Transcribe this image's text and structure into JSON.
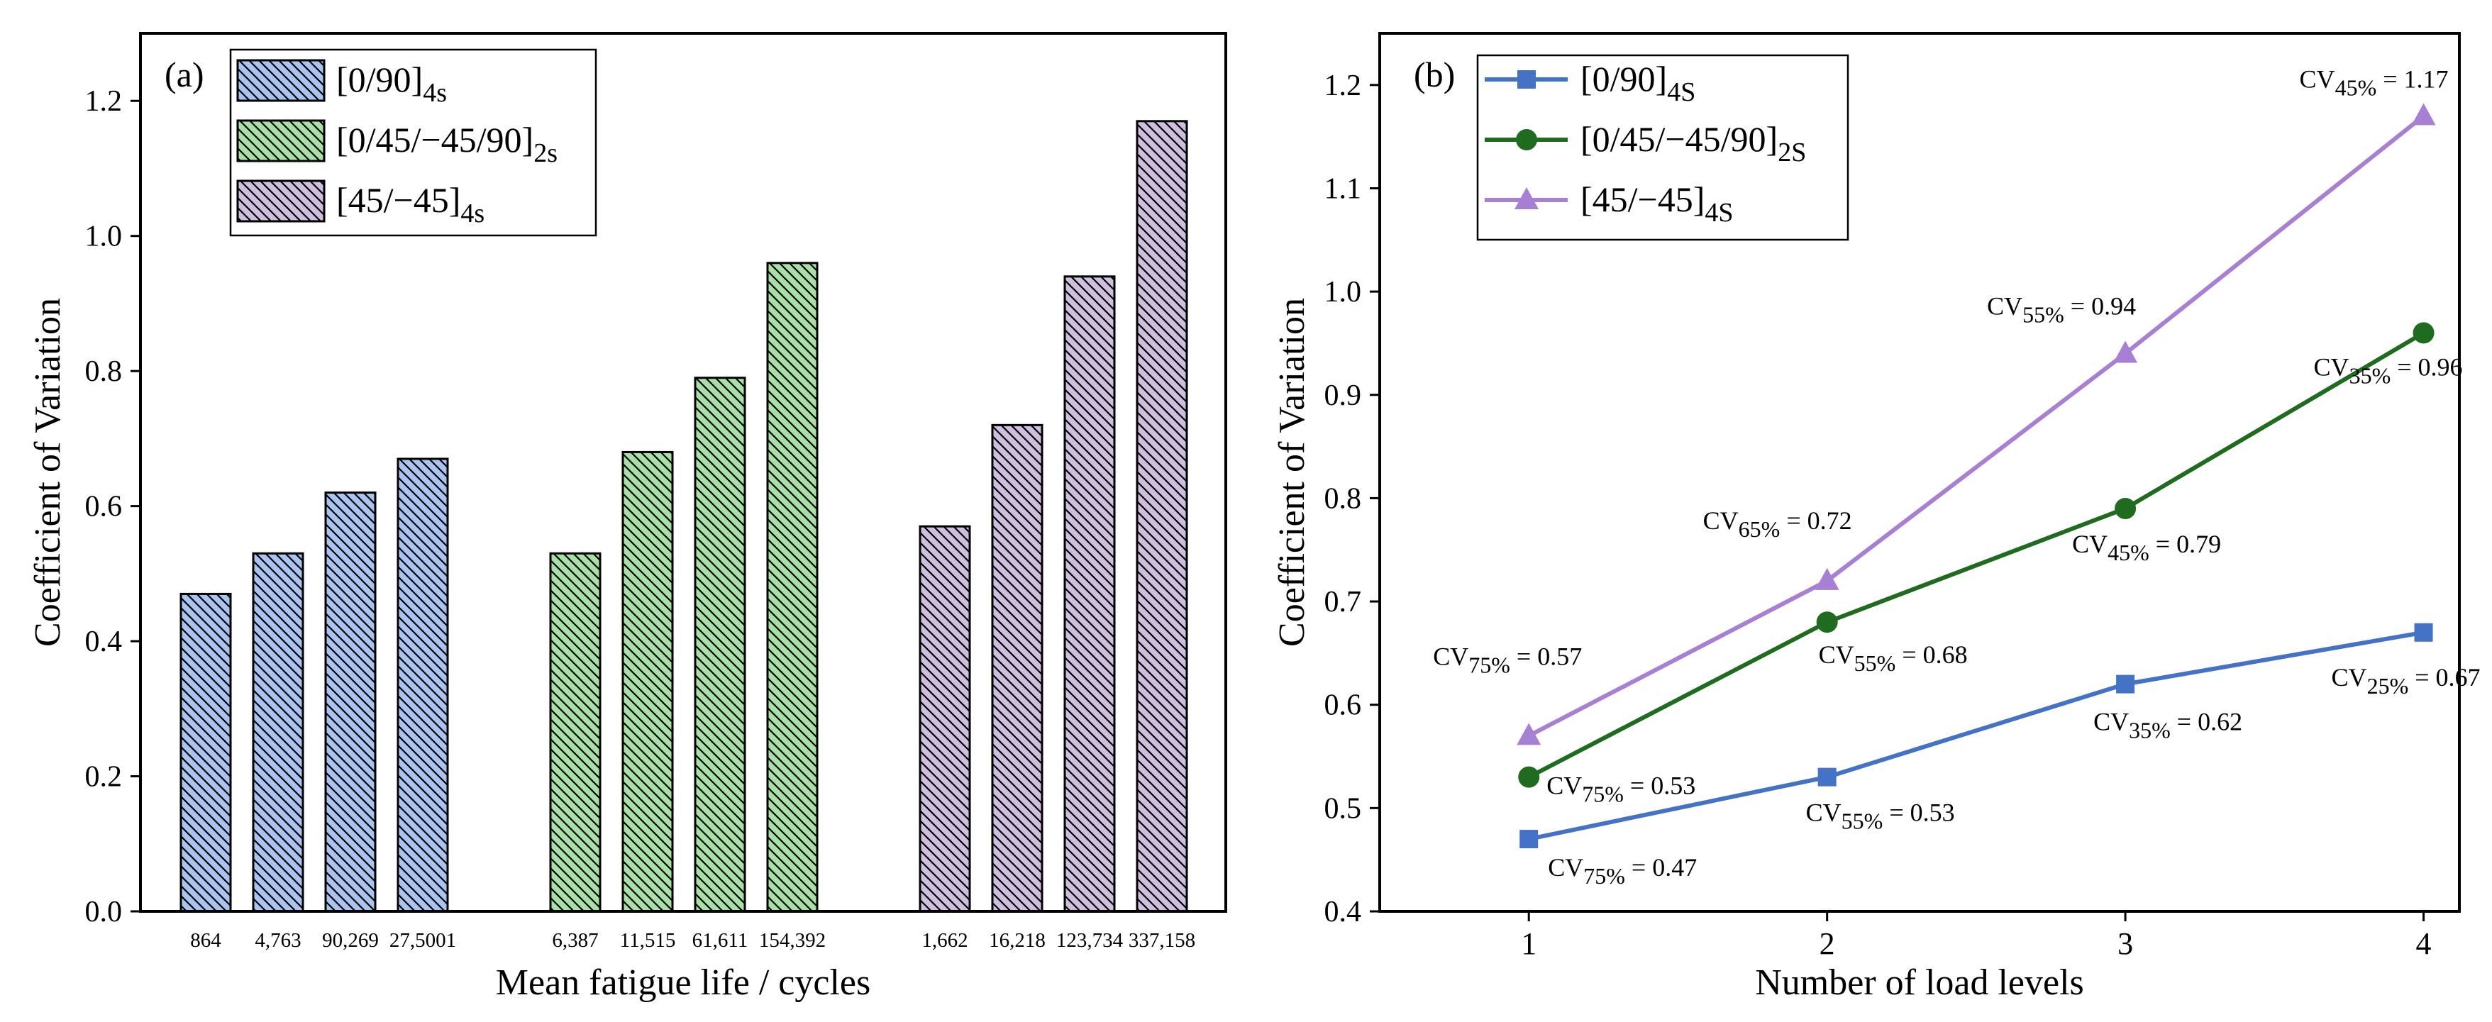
{
  "chart_data": [
    {
      "panel_label": "(a)",
      "type": "bar",
      "xlabel": "Mean fatigue life / cycles",
      "ylabel": "Coefficient of Variation",
      "ylim": [
        0,
        1.3
      ],
      "yticks": [
        "0.0",
        "0.2",
        "0.4",
        "0.6",
        "0.8",
        "1.0",
        "1.2"
      ],
      "legend_position": "top-left",
      "grid": false,
      "groups": [
        {
          "legend_base": "[0/90]",
          "legend_sub": "4s",
          "color": "#a9c4f0",
          "categories": [
            "864",
            "4,763",
            "90,269",
            "27,5001"
          ],
          "values": [
            0.47,
            0.53,
            0.62,
            0.67
          ]
        },
        {
          "legend_base": "[0/45/−45/90]",
          "legend_sub": "2s",
          "color": "#a8e0a6",
          "categories": [
            "6,387",
            "11,515",
            "61,611",
            "154,392"
          ],
          "values": [
            0.53,
            0.68,
            0.79,
            0.96
          ]
        },
        {
          "legend_base": "[45/−45]",
          "legend_sub": "4s",
          "color": "#cfbfdf",
          "categories": [
            "1,662",
            "16,218",
            "123,734",
            "337,158"
          ],
          "values": [
            0.57,
            0.72,
            0.94,
            1.17
          ]
        }
      ]
    },
    {
      "panel_label": "(b)",
      "type": "line",
      "xlabel": "Number of load levels",
      "ylabel": "Coefficient of Variation",
      "xlim": [
        0.5,
        4.12
      ],
      "ylim": [
        0.4,
        1.25
      ],
      "xticks": [
        "1",
        "2",
        "3",
        "4"
      ],
      "yticks": [
        "0.4",
        "0.5",
        "0.6",
        "0.7",
        "0.8",
        "0.9",
        "1.0",
        "1.1",
        "1.2"
      ],
      "legend_position": "top-left",
      "grid": false,
      "x": [
        1,
        2,
        3,
        4
      ],
      "series": [
        {
          "legend_base": "[0/90]",
          "legend_sub": "4S",
          "color": "#4472c4",
          "marker": "square",
          "values": [
            0.47,
            0.53,
            0.62,
            0.67
          ],
          "annotations": [
            {
              "pct": "75%",
              "value": "0.47"
            },
            {
              "pct": "55%",
              "value": "0.53"
            },
            {
              "pct": "35%",
              "value": "0.62"
            },
            {
              "pct": "25%",
              "value": "0.67"
            }
          ]
        },
        {
          "legend_base": "[0/45/−45/90]",
          "legend_sub": "2S",
          "color": "#1f6b1f",
          "marker": "circle",
          "values": [
            0.53,
            0.68,
            0.79,
            0.96
          ],
          "annotations": [
            {
              "pct": "75%",
              "value": "0.53"
            },
            {
              "pct": "55%",
              "value": "0.68"
            },
            {
              "pct": "45%",
              "value": "0.79"
            },
            {
              "pct": "35%",
              "value": "0.96"
            }
          ]
        },
        {
          "legend_base": "[45/−45]",
          "legend_sub": "4S",
          "color": "#a77fd3",
          "marker": "triangle",
          "values": [
            0.57,
            0.72,
            0.94,
            1.17
          ],
          "annotations": [
            {
              "pct": "75%",
              "value": "0.57"
            },
            {
              "pct": "65%",
              "value": "0.72"
            },
            {
              "pct": "55%",
              "value": "0.94"
            },
            {
              "pct": "45%",
              "value": "1.17"
            }
          ]
        }
      ]
    }
  ]
}
